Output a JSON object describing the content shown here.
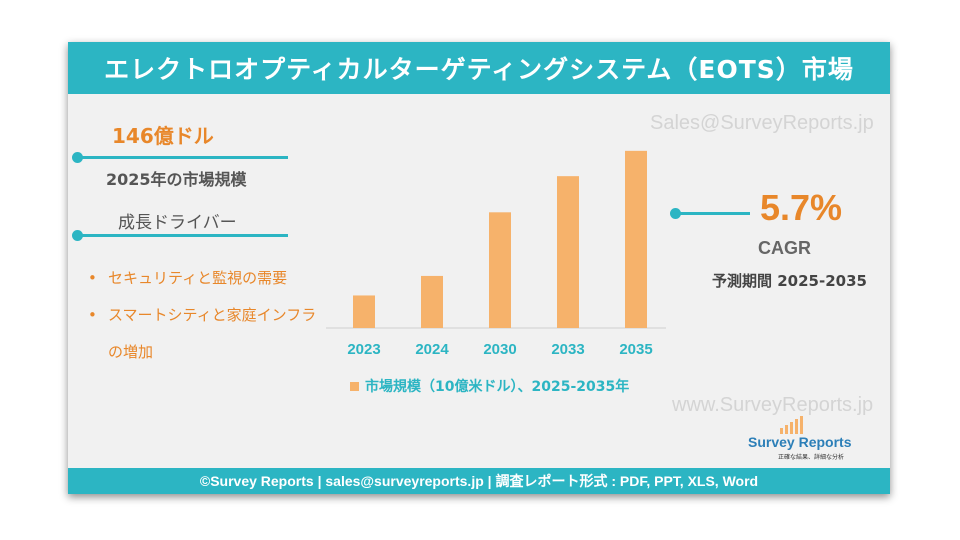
{
  "title": "エレクトロオプティカルターゲティングシステム（EOTS）市場",
  "watermarks": [
    "Sales@SurveyReports.jp",
    "www.SurveyReports.jp"
  ],
  "market_size": {
    "value": "146億ドル",
    "caption": "2025年の市場規模"
  },
  "growth_drivers": {
    "title": "成長ドライバー",
    "items": [
      "セキュリティと監視の需要",
      "スマートシティと家庭インフラの増加"
    ]
  },
  "cagr": {
    "value": "5.7%",
    "label": "CAGR",
    "period": "予測期間 2025-2035"
  },
  "logo": {
    "name_part1": "Survey",
    "name_part2": " Reports",
    "tagline": "正確な結果、詳細な分析"
  },
  "footer": "©Survey Reports | sales@surveyreports.jp |  調査レポート形式 : PDF, PPT, XLS, Word",
  "colors": {
    "accent": "#2cb5c3",
    "bar": "#f6b26b",
    "highlight": "#e8872a"
  },
  "chart_data": {
    "type": "bar",
    "categories": [
      "2023",
      "2024",
      "2030",
      "2033",
      "2035"
    ],
    "series": [
      {
        "name": "市場規模（10億米ドル）、2025-2035年",
        "values": [
          4.5,
          7.2,
          16.0,
          21.0,
          24.5
        ]
      }
    ],
    "ylim": [
      0,
      26
    ],
    "grid": false,
    "legend": "bottom"
  }
}
